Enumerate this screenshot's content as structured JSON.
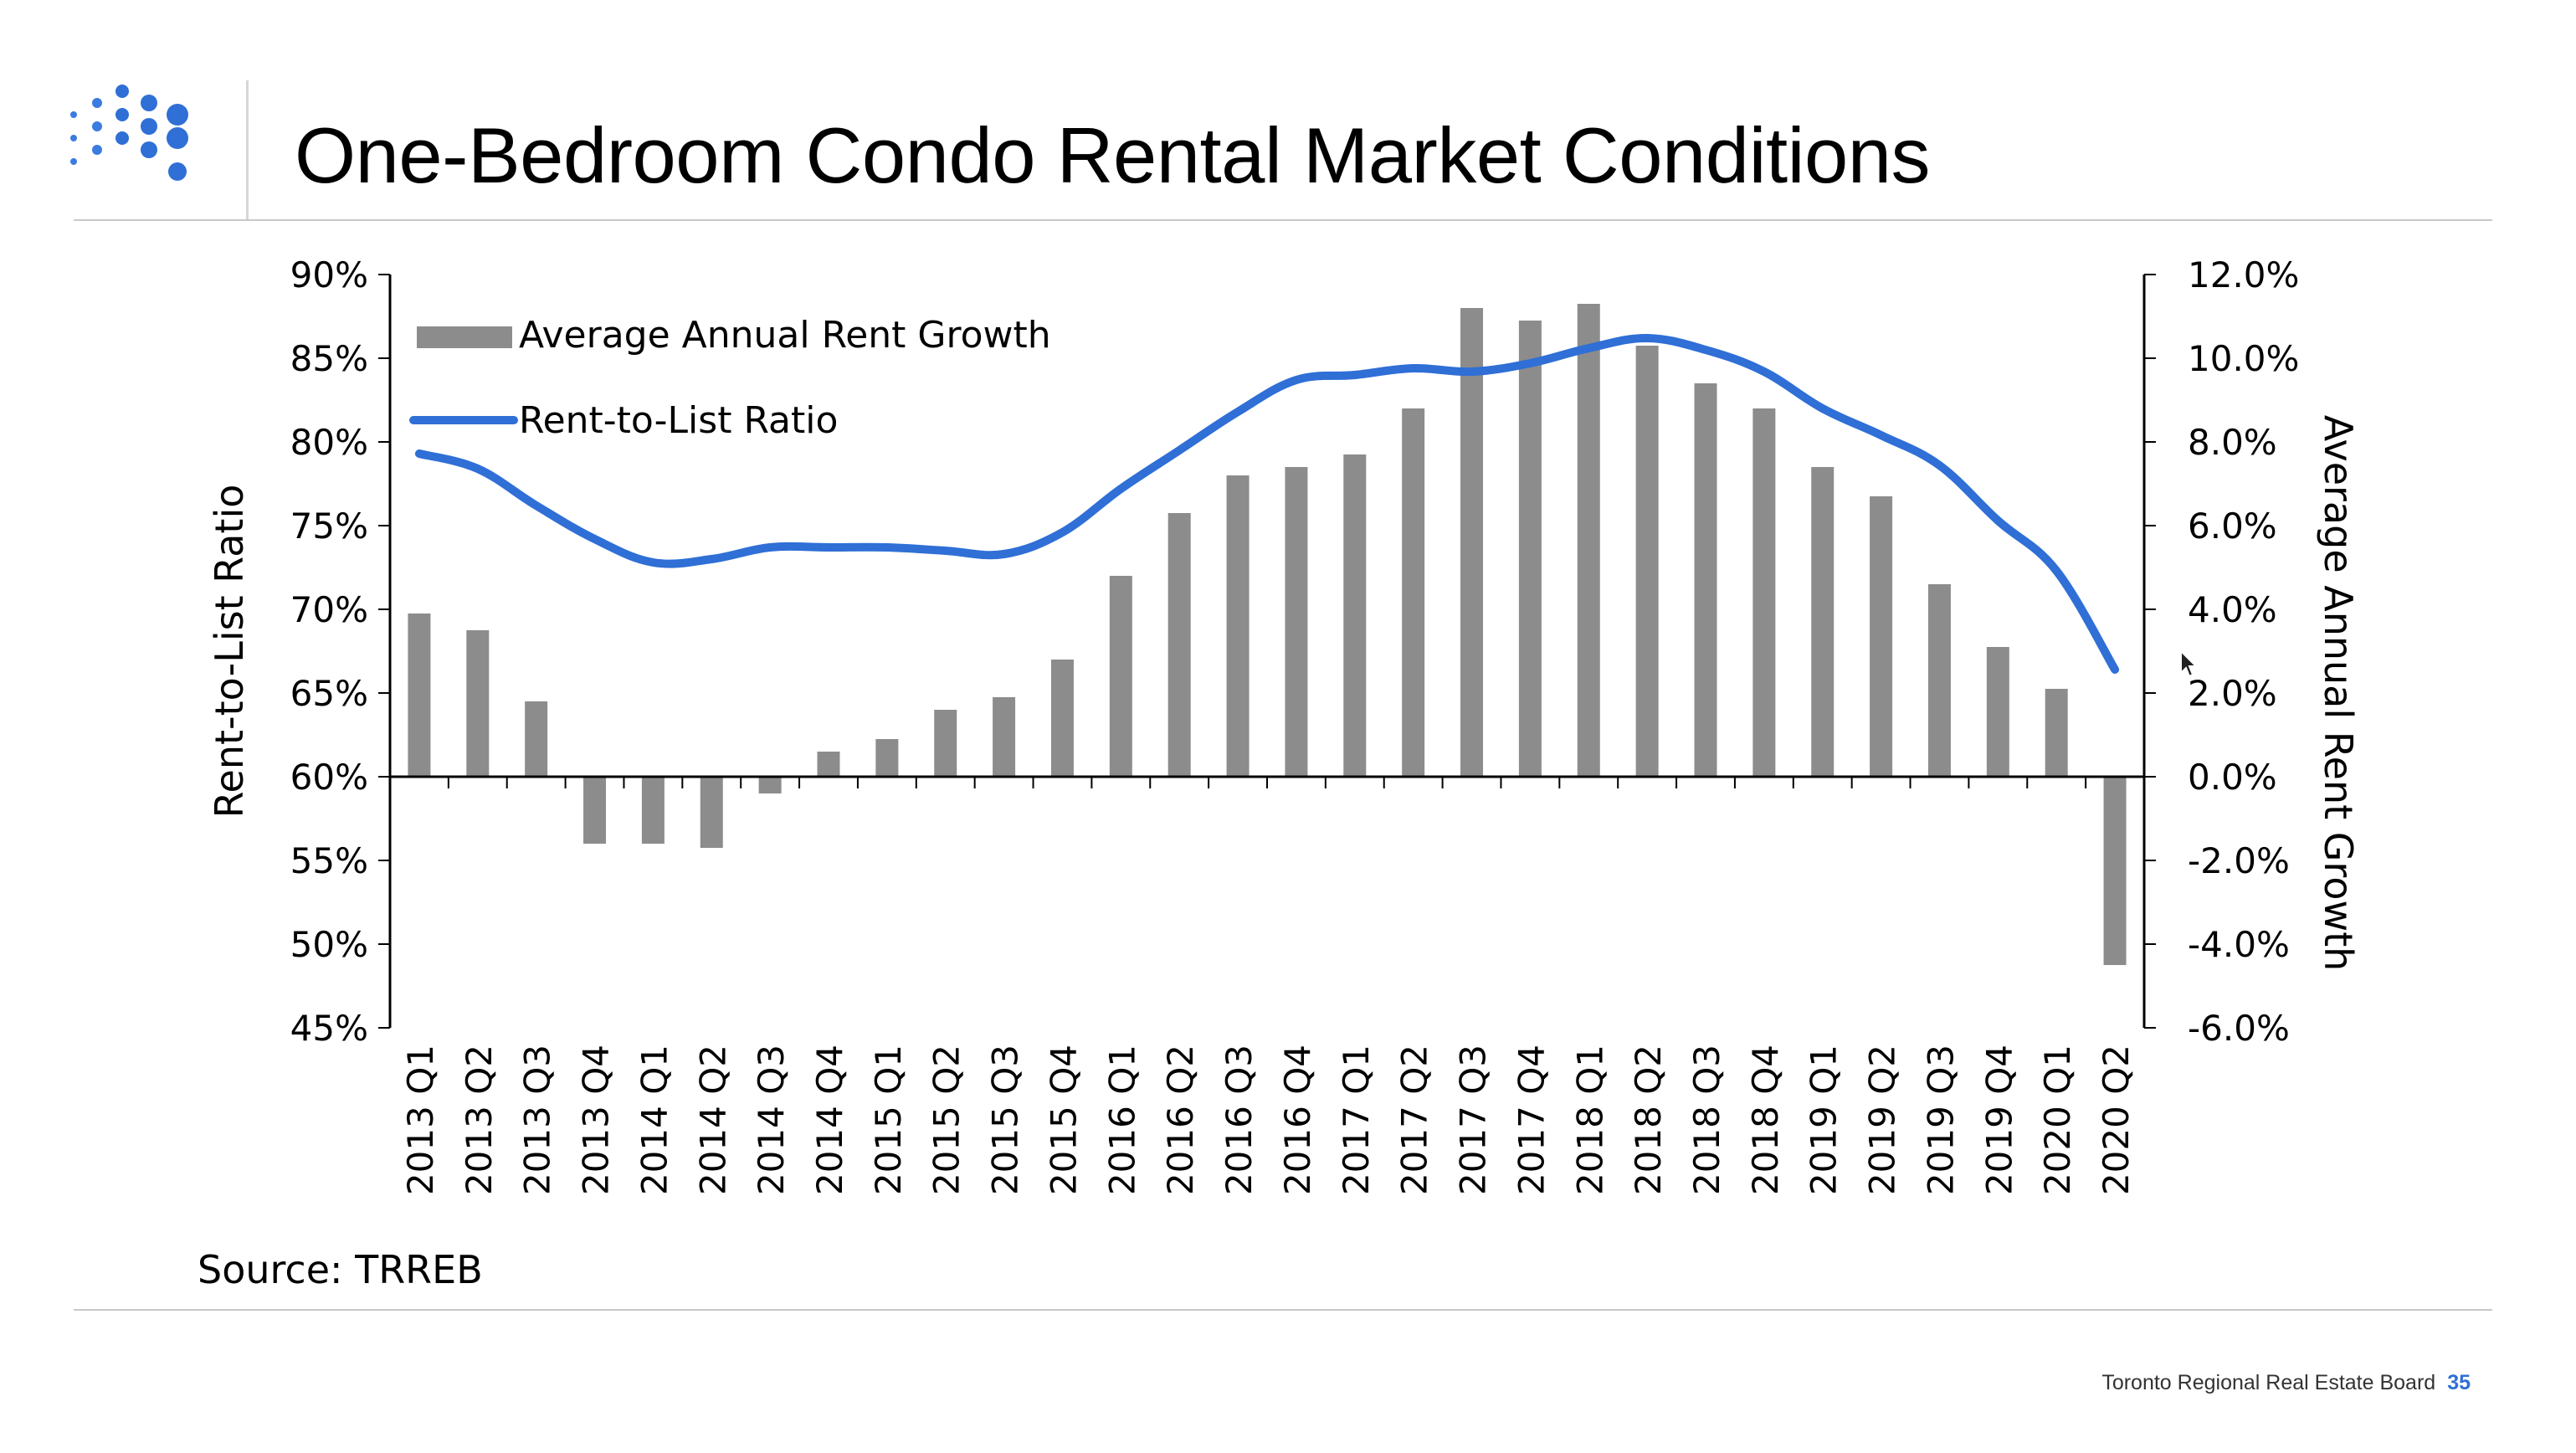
{
  "slide": {
    "title": "One-Bedroom Condo Rental Market Conditions",
    "source": "Source: TRREB",
    "footer_org": "Toronto Regional Real Estate Board",
    "page_number": "35"
  },
  "chart_data": {
    "type": "bar",
    "title": "",
    "categories": [
      "2013 Q1",
      "2013 Q2",
      "2013 Q3",
      "2013 Q4",
      "2014 Q1",
      "2014 Q2",
      "2014 Q3",
      "2014 Q4",
      "2015 Q1",
      "2015 Q2",
      "2015 Q3",
      "2015 Q4",
      "2016 Q1",
      "2016 Q2",
      "2016 Q3",
      "2016 Q4",
      "2017 Q1",
      "2017 Q2",
      "2017 Q3",
      "2017 Q4",
      "2018 Q1",
      "2018 Q2",
      "2018 Q3",
      "2018 Q4",
      "2019 Q1",
      "2019 Q2",
      "2019 Q3",
      "2019 Q4",
      "2020 Q1",
      "2020 Q2"
    ],
    "series": [
      {
        "name": "Average Annual Rent Growth",
        "type": "bar",
        "axis": "right",
        "color": "#8c8c8c",
        "values": [
          3.9,
          3.5,
          1.8,
          -1.6,
          -1.6,
          -1.7,
          -0.4,
          0.6,
          0.9,
          1.6,
          1.9,
          2.8,
          4.8,
          6.3,
          7.2,
          7.4,
          7.7,
          8.8,
          11.2,
          10.9,
          11.3,
          10.3,
          9.4,
          8.8,
          7.4,
          6.7,
          4.6,
          3.1,
          2.1,
          -4.5
        ]
      },
      {
        "name": "Rent-to-List Ratio",
        "type": "line",
        "axis": "left",
        "color": "#2f6fd6",
        "values": [
          79.3,
          78.4,
          76.2,
          74.2,
          72.8,
          73.0,
          73.7,
          73.7,
          73.7,
          73.5,
          73.3,
          74.6,
          77.2,
          79.5,
          81.8,
          83.7,
          84.0,
          84.4,
          84.2,
          84.7,
          85.6,
          86.2,
          85.5,
          84.2,
          82.0,
          80.4,
          78.6,
          75.3,
          72.3,
          66.4
        ]
      }
    ],
    "y_left": {
      "label": "Rent-to-List Ratio",
      "range": [
        45,
        90
      ],
      "ticks": [
        "90%",
        "85%",
        "80%",
        "75%",
        "70%",
        "65%",
        "60%",
        "55%",
        "50%",
        "45%"
      ]
    },
    "y_right": {
      "label": "Average Annual Rent Growth",
      "range": [
        -6,
        12
      ],
      "ticks": [
        "12.0%",
        "10.0%",
        "8.0%",
        "6.0%",
        "4.0%",
        "2.0%",
        "0.0%",
        "-2.0%",
        "-4.0%",
        "-6.0%"
      ]
    },
    "xlabel": "",
    "legend": {
      "placement": "top-left",
      "items": [
        "Average Annual Rent Growth",
        "Rent-to-List Ratio"
      ]
    },
    "grid": false
  }
}
